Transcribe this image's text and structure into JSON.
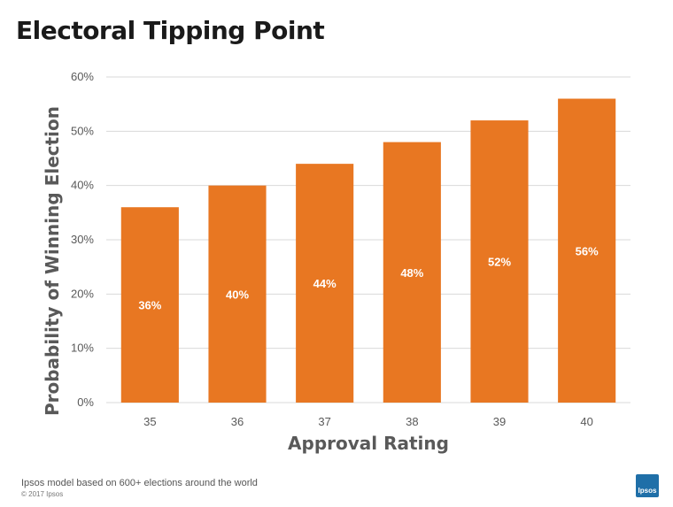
{
  "title": "Electoral Tipping Point",
  "footnote": "Ipsos model based on 600+ elections around the world",
  "copyright": "© 2017 Ipsos",
  "logo_text": "Ipsos",
  "colors": {
    "bar": "#E87722",
    "grid": "#d9d9d9",
    "axis_text": "#595959",
    "label_text": "#ffffff",
    "logo": "#1f6fa8"
  },
  "chart_data": {
    "type": "bar",
    "title": "Electoral Tipping Point",
    "categories": [
      "35",
      "36",
      "37",
      "38",
      "39",
      "40"
    ],
    "values": [
      36,
      40,
      44,
      48,
      52,
      56
    ],
    "data_labels": [
      "36%",
      "40%",
      "44%",
      "48%",
      "52%",
      "56%"
    ],
    "xlabel": "Approval Rating",
    "ylabel": "Probability of Winning Election",
    "ylim": [
      0,
      60
    ],
    "yticks": [
      0,
      10,
      20,
      30,
      40,
      50,
      60
    ],
    "ytick_labels": [
      "0%",
      "10%",
      "20%",
      "30%",
      "40%",
      "50%",
      "60%"
    ],
    "grid": true,
    "legend": "none"
  }
}
